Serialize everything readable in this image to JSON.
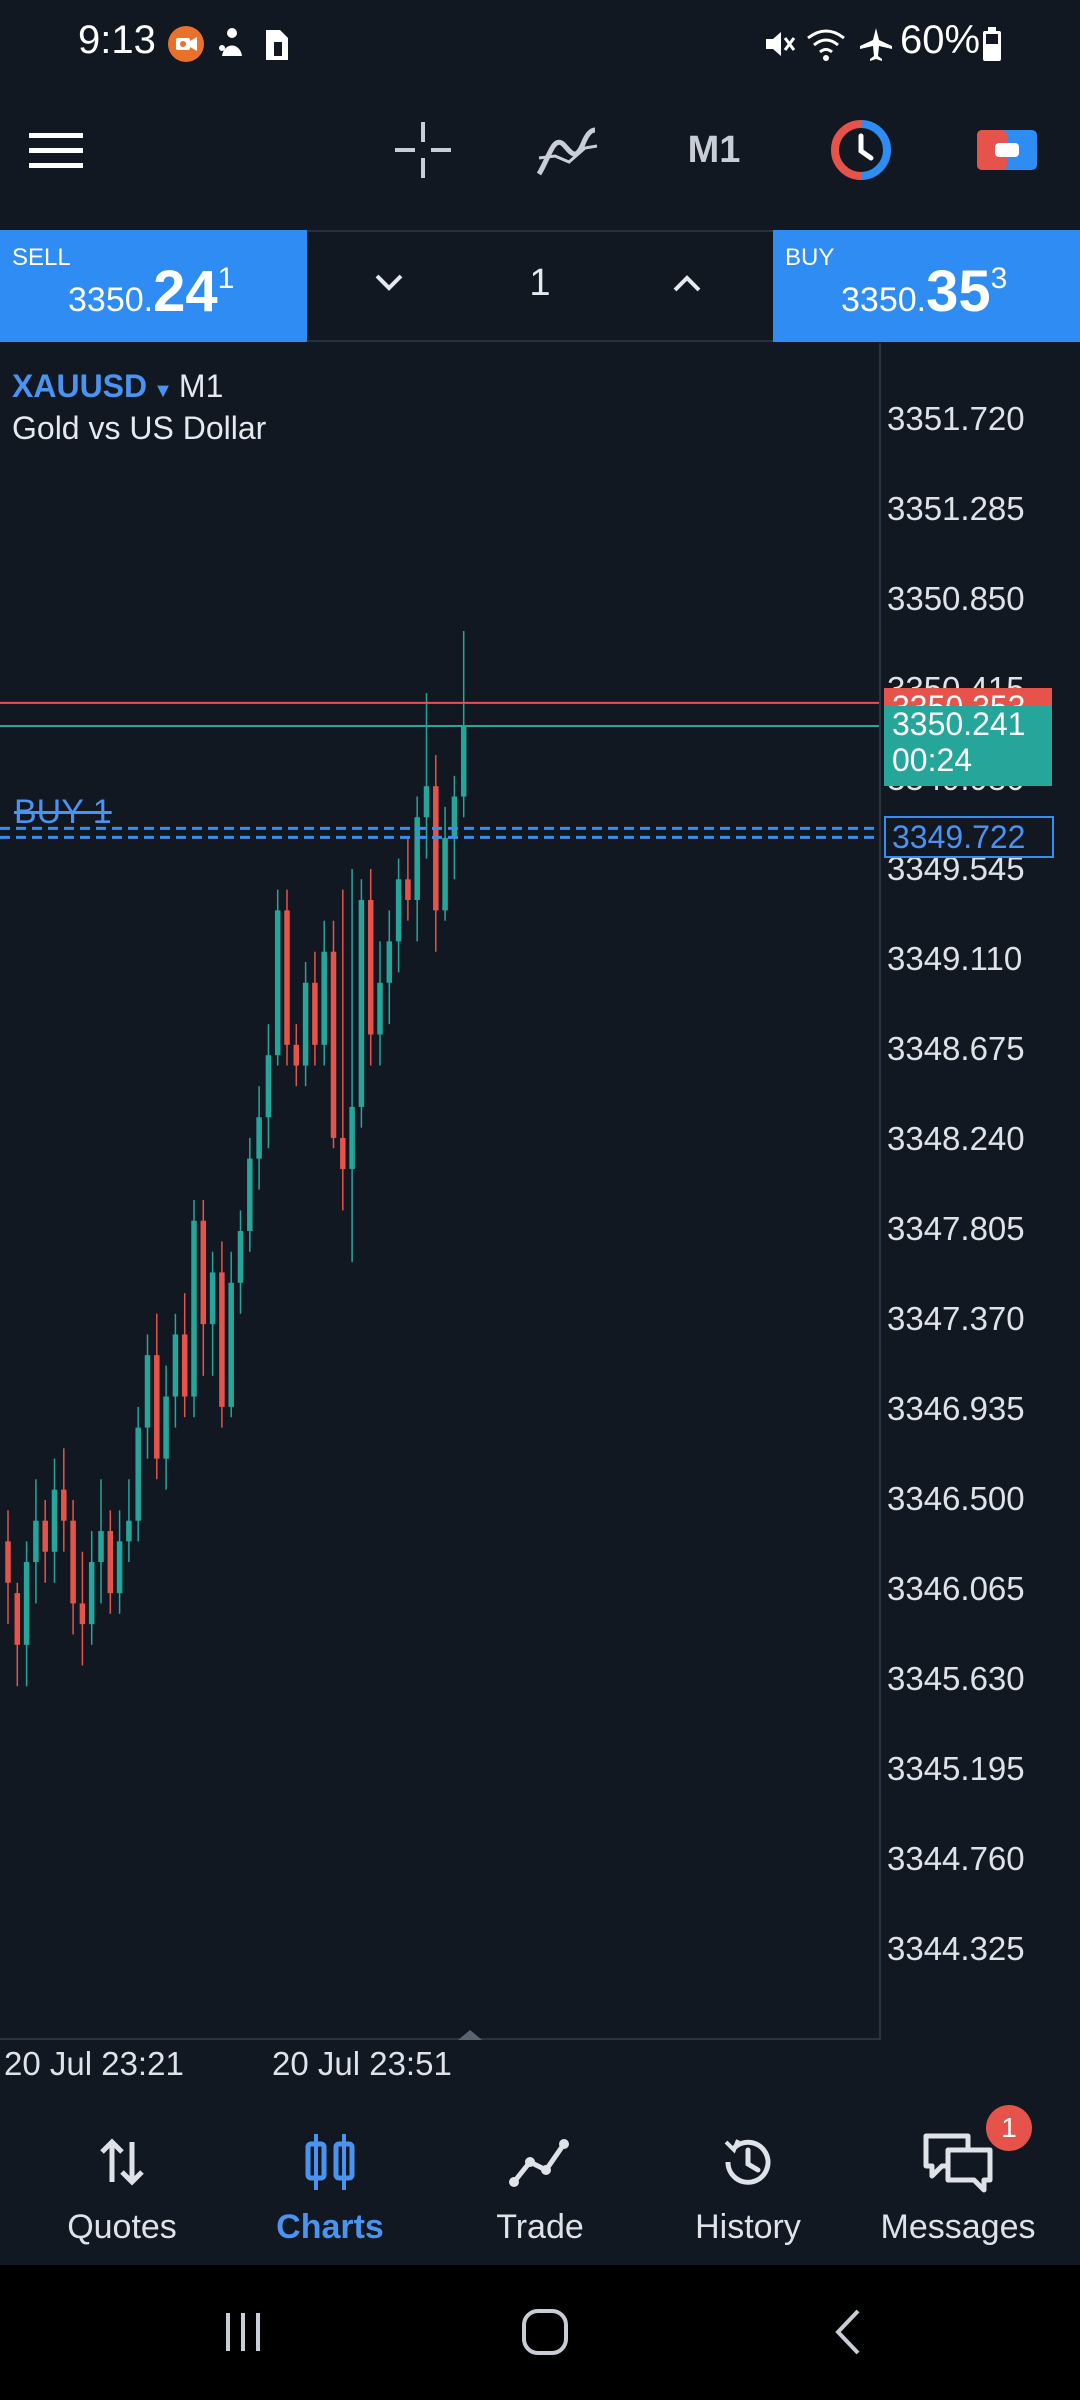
{
  "status_bar": {
    "time": "9:13",
    "battery": "60%",
    "icons": [
      "camera-recording-icon",
      "notification-icon",
      "sim-icon",
      "mute-icon",
      "wifi-icon",
      "airplane-icon",
      "battery-icon"
    ]
  },
  "toolbar": {
    "icons": [
      "menu-icon",
      "crosshair-icon",
      "indicator-icon",
      "timeframe",
      "clock-icon",
      "one-click-trading-icon"
    ],
    "timeframe": "M1"
  },
  "trade_panel": {
    "sell_label": "SELL",
    "sell_price_base": "3350.",
    "sell_price_big": "24",
    "sell_price_sup": "1",
    "buy_label": "BUY",
    "buy_price_base": "3350.",
    "buy_price_big": "35",
    "buy_price_sup": "3",
    "volume": "1"
  },
  "chart": {
    "symbol": "XAUUSD",
    "symbol_arrow": "▼",
    "timeframe": "M1",
    "description": "Gold vs US Dollar",
    "ask_price": "3350.353",
    "bid_price": "3350.241",
    "countdown": "00:24",
    "order_price": "3349.722",
    "order_label": "BUY 1",
    "colors": {
      "up": "#26a69a",
      "down": "#e5534b",
      "order": "#3a8df0"
    }
  },
  "chart_data": {
    "type": "candlestick",
    "title": "XAUUSD M1",
    "price_ticks": [
      "3351.720",
      "3351.285",
      "3350.850",
      "3350.415",
      "3349.980",
      "3349.545",
      "3349.110",
      "3348.675",
      "3348.240",
      "3347.805",
      "3347.370",
      "3346.935",
      "3346.500",
      "3346.065",
      "3345.630",
      "3345.195",
      "3344.760",
      "3344.325"
    ],
    "time_labels": [
      "20 Jul 23:21",
      "20 Jul 23:51"
    ],
    "ylim": [
      3343.9,
      3352.0
    ],
    "lines": {
      "ask": 3350.353,
      "bid": 3350.241,
      "order": 3349.722
    },
    "candles": [
      [
        3346.3,
        3346.45,
        3345.9,
        3346.1
      ],
      [
        3346.05,
        3346.1,
        3345.6,
        3345.8
      ],
      [
        3345.8,
        3346.3,
        3345.6,
        3346.2
      ],
      [
        3346.2,
        3346.6,
        3346.0,
        3346.4
      ],
      [
        3346.4,
        3346.5,
        3346.1,
        3346.25
      ],
      [
        3346.25,
        3346.7,
        3346.1,
        3346.55
      ],
      [
        3346.55,
        3346.75,
        3346.25,
        3346.4
      ],
      [
        3346.4,
        3346.5,
        3345.85,
        3346.0
      ],
      [
        3346.0,
        3346.25,
        3345.7,
        3345.9
      ],
      [
        3345.9,
        3346.35,
        3345.8,
        3346.2
      ],
      [
        3346.2,
        3346.6,
        3346.0,
        3346.35
      ],
      [
        3346.35,
        3346.45,
        3345.95,
        3346.05
      ],
      [
        3346.05,
        3346.45,
        3345.95,
        3346.3
      ],
      [
        3346.3,
        3346.6,
        3346.2,
        3346.4
      ],
      [
        3346.4,
        3346.95,
        3346.3,
        3346.85
      ],
      [
        3346.85,
        3347.3,
        3346.7,
        3347.2
      ],
      [
        3347.2,
        3347.4,
        3346.6,
        3346.7
      ],
      [
        3346.7,
        3347.15,
        3346.55,
        3347.0
      ],
      [
        3347.0,
        3347.4,
        3346.85,
        3347.3
      ],
      [
        3347.3,
        3347.5,
        3346.9,
        3347.0
      ],
      [
        3347.0,
        3347.95,
        3346.9,
        3347.85
      ],
      [
        3347.85,
        3347.95,
        3347.1,
        3347.35
      ],
      [
        3347.35,
        3347.7,
        3347.1,
        3347.6
      ],
      [
        3347.6,
        3347.75,
        3346.85,
        3346.95
      ],
      [
        3346.95,
        3347.7,
        3346.9,
        3347.55
      ],
      [
        3347.55,
        3347.9,
        3347.4,
        3347.8
      ],
      [
        3347.8,
        3348.25,
        3347.7,
        3348.15
      ],
      [
        3348.15,
        3348.5,
        3348.0,
        3348.35
      ],
      [
        3348.35,
        3348.8,
        3348.2,
        3348.65
      ],
      [
        3348.65,
        3349.45,
        3348.6,
        3349.35
      ],
      [
        3349.35,
        3349.45,
        3348.6,
        3348.7
      ],
      [
        3348.7,
        3348.8,
        3348.5,
        3348.6
      ],
      [
        3348.6,
        3349.1,
        3348.5,
        3349.0
      ],
      [
        3349.0,
        3349.15,
        3348.6,
        3348.7
      ],
      [
        3348.7,
        3349.3,
        3348.6,
        3349.15
      ],
      [
        3349.15,
        3349.3,
        3348.2,
        3348.25
      ],
      [
        3348.25,
        3349.45,
        3347.9,
        3348.1
      ],
      [
        3348.1,
        3349.55,
        3347.65,
        3348.4
      ],
      [
        3348.4,
        3349.5,
        3348.3,
        3349.4
      ],
      [
        3349.4,
        3349.55,
        3348.6,
        3348.75
      ],
      [
        3348.75,
        3349.2,
        3348.6,
        3349.0
      ],
      [
        3349.0,
        3349.35,
        3348.8,
        3349.2
      ],
      [
        3349.2,
        3349.6,
        3349.05,
        3349.5
      ],
      [
        3349.5,
        3349.7,
        3349.3,
        3349.4
      ],
      [
        3349.4,
        3349.9,
        3349.2,
        3349.8
      ],
      [
        3349.8,
        3350.4,
        3349.6,
        3349.95
      ],
      [
        3349.95,
        3350.1,
        3349.15,
        3349.35
      ],
      [
        3349.35,
        3349.85,
        3349.3,
        3349.7
      ],
      [
        3349.7,
        3350.0,
        3349.5,
        3349.9
      ],
      [
        3349.9,
        3350.7,
        3349.8,
        3350.24
      ]
    ]
  },
  "nav": {
    "items": [
      {
        "label": "Quotes",
        "icon": "arrows-updown-icon"
      },
      {
        "label": "Charts",
        "icon": "candles-icon"
      },
      {
        "label": "Trade",
        "icon": "trade-line-icon"
      },
      {
        "label": "History",
        "icon": "history-icon"
      },
      {
        "label": "Messages",
        "icon": "messages-icon"
      }
    ],
    "active": "Charts",
    "messages_badge": "1"
  },
  "android_nav": {
    "icons": [
      "recents-icon",
      "home-icon",
      "back-icon"
    ]
  }
}
